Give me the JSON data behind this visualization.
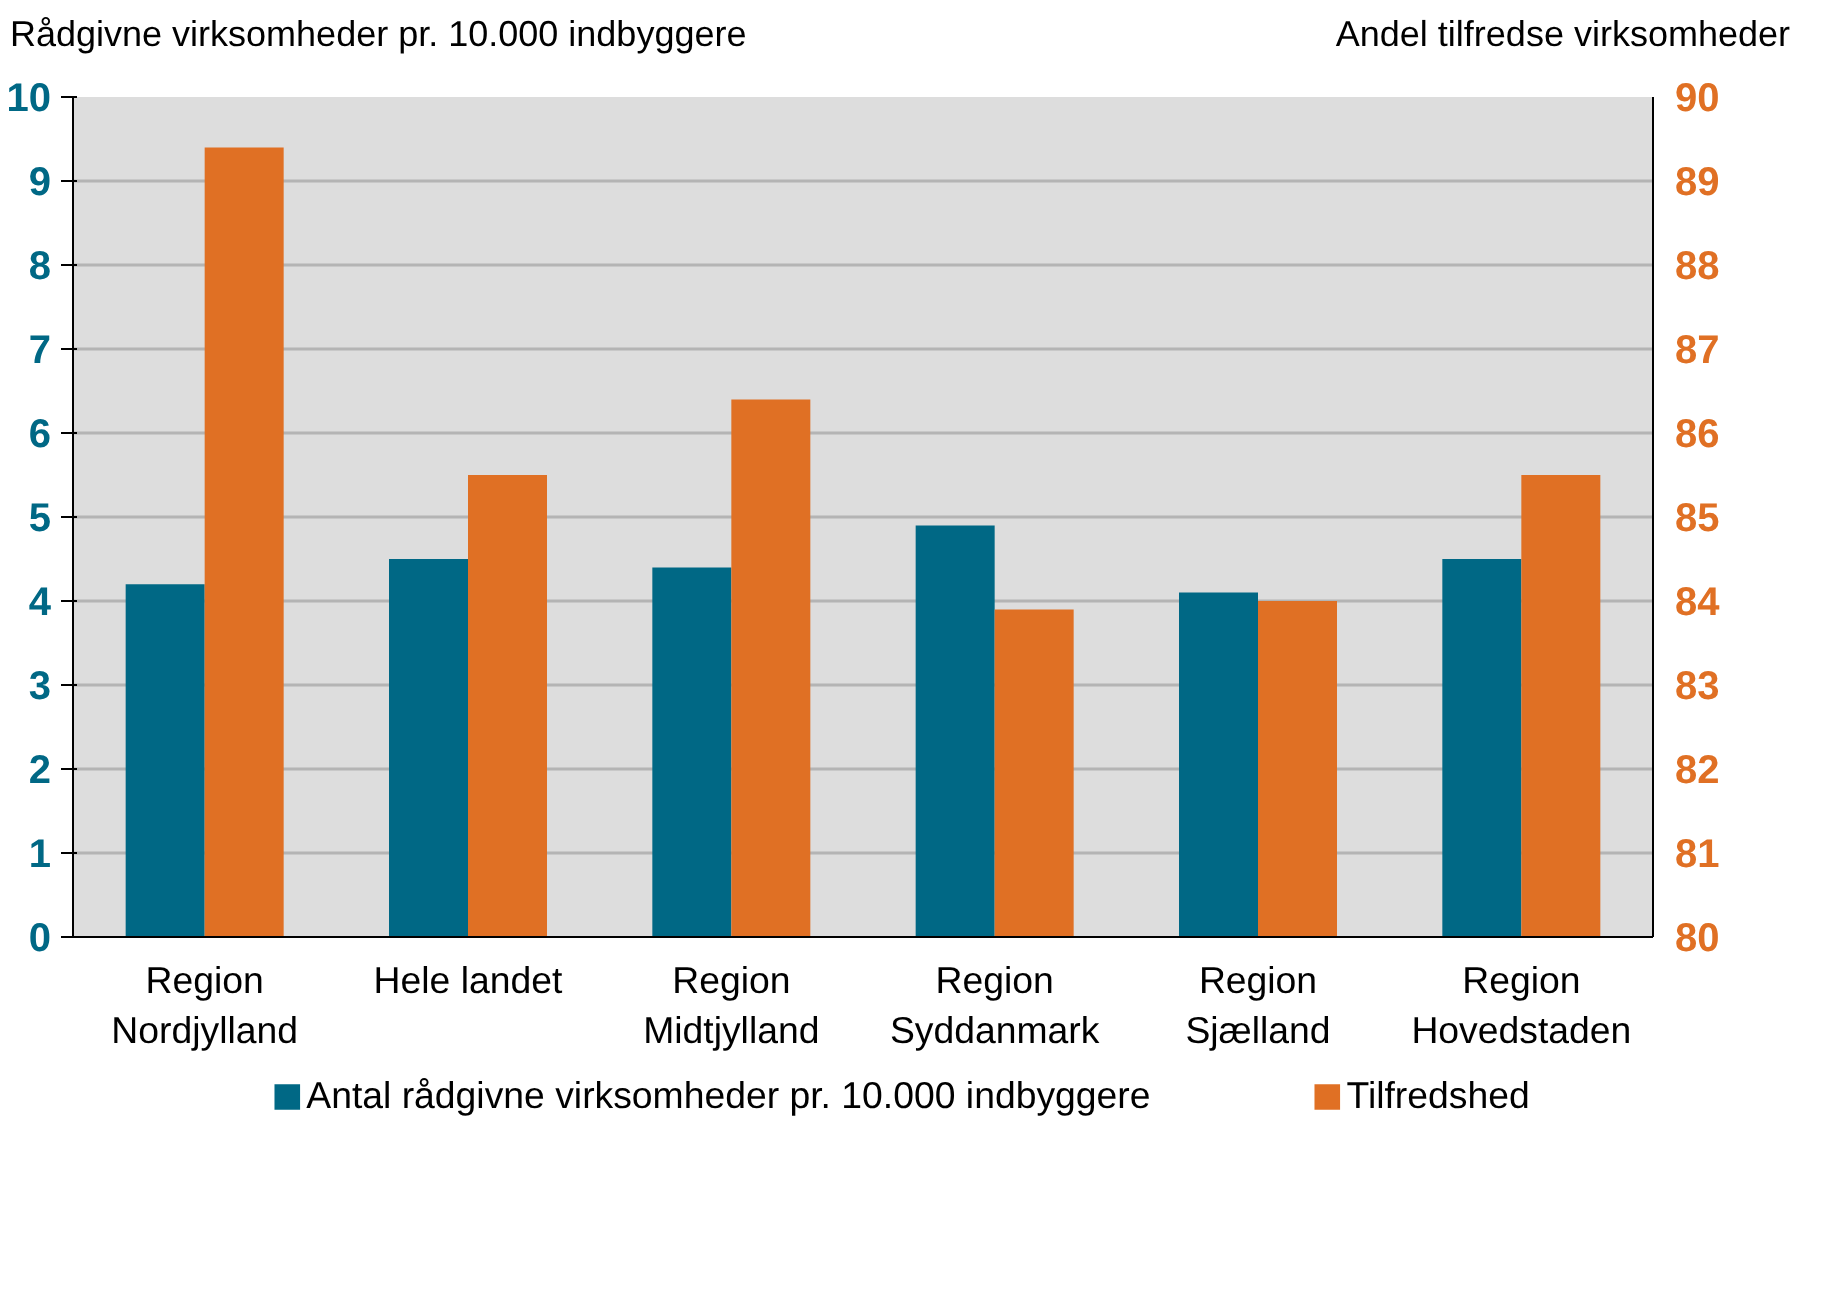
{
  "chart_data": {
    "type": "bar",
    "ylabel": "Rådgivne virksomheder pr. 10.000 indbyggere",
    "y2label": "Andel tilfredse virksomheder",
    "categories": [
      "Region\nNordjylland",
      "Hele landet",
      "Region\nMidtjylland",
      "Region\nSyddanmark",
      "Region\nSjælland",
      "Region\nHovedstaden"
    ],
    "series": [
      {
        "name": "Antal rådgivne virksomheder pr. 10.000 indbyggere",
        "color": "#006885",
        "values": [
          4.2,
          4.5,
          4.4,
          4.9,
          4.1,
          4.5
        ]
      },
      {
        "name": "Tilfredshed",
        "color": "#e07024",
        "axis": "y2",
        "values": [
          89.4,
          85.5,
          86.4,
          83.9,
          84.0,
          85.5
        ]
      }
    ],
    "ylim": [
      0,
      10
    ],
    "yticks": [
      0,
      1,
      2,
      3,
      4,
      5,
      6,
      7,
      8,
      9,
      10
    ],
    "y2lim": [
      80,
      90
    ],
    "y2ticks": [
      80,
      81,
      82,
      83,
      84,
      85,
      86,
      87,
      88,
      89,
      90
    ],
    "grid": "y",
    "legend": "bottom"
  }
}
